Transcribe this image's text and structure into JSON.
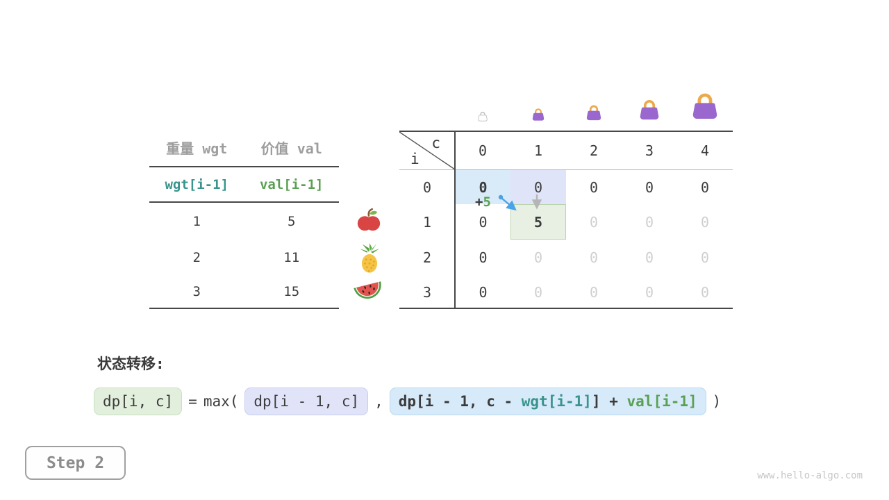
{
  "page": {
    "watermark": "www.hello-algo.com"
  },
  "step_indicator": {
    "label": "Step 2"
  },
  "item_table": {
    "headers": {
      "weight": "重量 wgt",
      "value": "价值 val"
    },
    "formula_row": {
      "weight": "wgt[i-1]",
      "value": "val[i-1]"
    },
    "rows": [
      {
        "weight": "1",
        "value": "5",
        "fruit": "apple-icon"
      },
      {
        "weight": "2",
        "value": "11",
        "fruit": "pineapple-icon"
      },
      {
        "weight": "3",
        "value": "15",
        "fruit": "watermelon-icon"
      }
    ]
  },
  "dp_table": {
    "corner": {
      "col_var": "c",
      "row_var": "i"
    },
    "col_headers": [
      "0",
      "1",
      "2",
      "3",
      "4"
    ],
    "row_headers": [
      "0",
      "1",
      "2",
      "3"
    ],
    "bags": [
      {
        "icon": "bag-icon",
        "size": 16,
        "ghost": true
      },
      {
        "icon": "bag-icon",
        "size": 21,
        "ghost": false
      },
      {
        "icon": "bag-icon",
        "size": 26,
        "ghost": false
      },
      {
        "icon": "bag-icon",
        "size": 34,
        "ghost": false
      },
      {
        "icon": "bag-icon",
        "size": 44,
        "ghost": false
      }
    ],
    "cells": [
      [
        {
          "v": "0",
          "state": "src_take"
        },
        {
          "v": "0",
          "state": "src_skip"
        },
        {
          "v": "0"
        },
        {
          "v": "0"
        },
        {
          "v": "0"
        }
      ],
      [
        {
          "v": "0"
        },
        {
          "v": "5",
          "state": "target"
        },
        {
          "v": "0",
          "state": "dim"
        },
        {
          "v": "0",
          "state": "dim"
        },
        {
          "v": "0",
          "state": "dim"
        }
      ],
      [
        {
          "v": "0"
        },
        {
          "v": "0",
          "state": "dim"
        },
        {
          "v": "0",
          "state": "dim"
        },
        {
          "v": "0",
          "state": "dim"
        },
        {
          "v": "0",
          "state": "dim"
        }
      ],
      [
        {
          "v": "0"
        },
        {
          "v": "0",
          "state": "dim"
        },
        {
          "v": "0",
          "state": "dim"
        },
        {
          "v": "0",
          "state": "dim"
        },
        {
          "v": "0",
          "state": "dim"
        }
      ]
    ],
    "annotation": {
      "plus": "+",
      "gain": "5"
    }
  },
  "transition": {
    "heading": "状态转移:",
    "lhs_box": "dp[i, c]",
    "equals": "=",
    "max_open": "max(",
    "skip_box": "dp[i - 1, c]",
    "comma": ",",
    "take_box_parts": [
      {
        "text": "dp[i - 1, c - ",
        "color": "dark"
      },
      {
        "text": "wgt[i-1]",
        "color": "teal"
      },
      {
        "text": "] + ",
        "color": "dark"
      },
      {
        "text": "val[i-1]",
        "color": "green"
      }
    ],
    "close_paren": ")"
  },
  "colors": {
    "teal": "#38948d",
    "green": "#5aa052",
    "arrow_blue": "#4aa3e8",
    "arrow_gray": "#b5b5b5",
    "highlight_blue": "#d9eaf8",
    "highlight_lavender": "#e0e4f9",
    "highlight_green": "#e7f0e2",
    "bag_purple": "#9a67ce",
    "bag_handle": "#edaa4b"
  }
}
